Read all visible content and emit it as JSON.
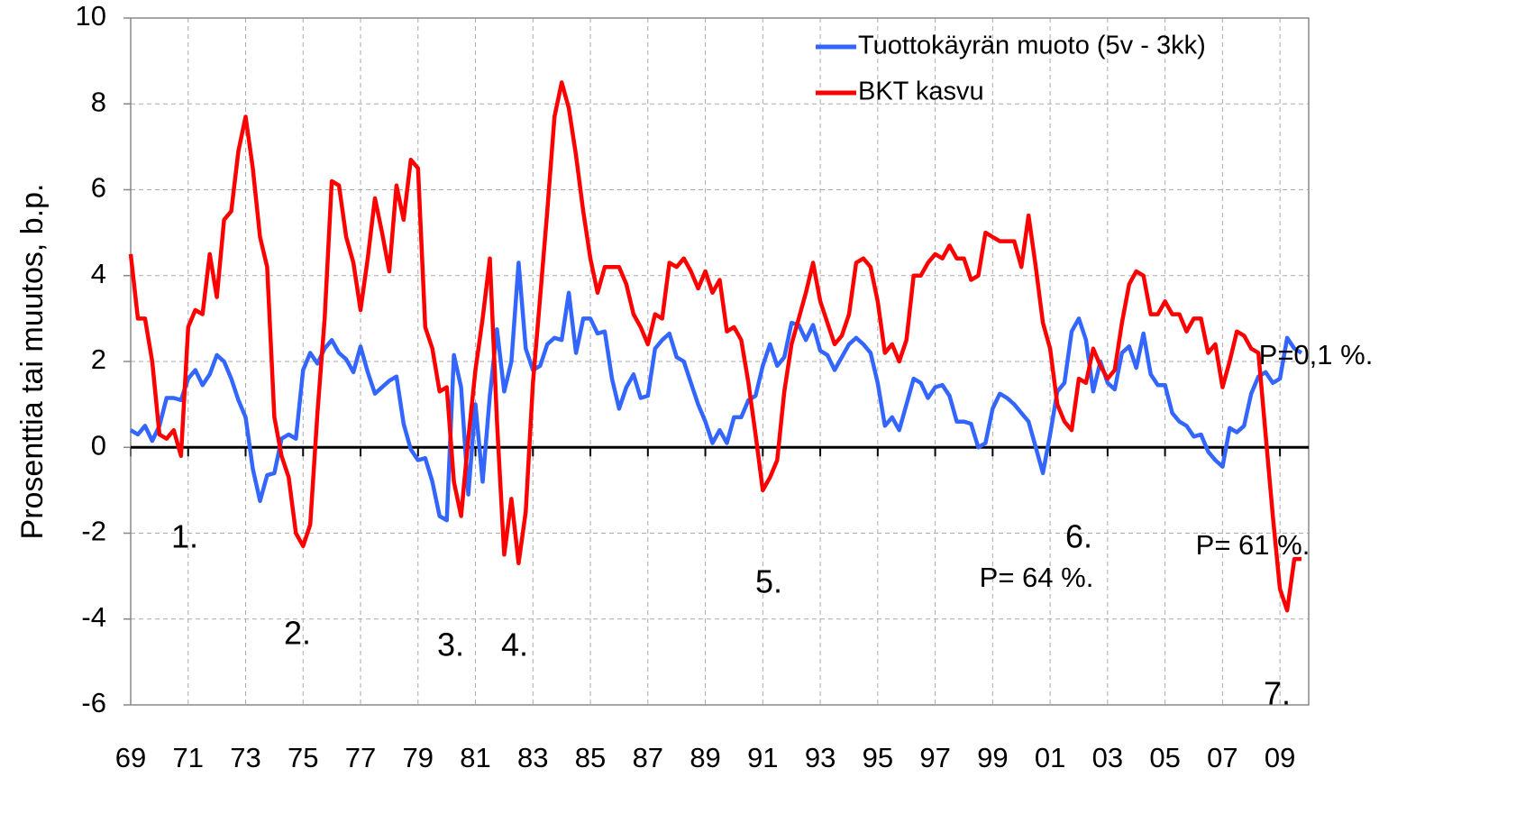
{
  "chart_data": {
    "type": "line",
    "y_label": "Prosenttia tai muutos, b.p.",
    "x": [
      1969,
      1969.25,
      1969.5,
      1969.75,
      1970,
      1970.25,
      1970.5,
      1970.75,
      1971,
      1971.25,
      1971.5,
      1971.75,
      1972,
      1972.25,
      1972.5,
      1972.75,
      1973,
      1973.25,
      1973.5,
      1973.75,
      1974,
      1974.25,
      1974.5,
      1974.75,
      1975,
      1975.25,
      1975.5,
      1975.75,
      1976,
      1976.25,
      1976.5,
      1976.75,
      1977,
      1977.25,
      1977.5,
      1977.75,
      1978,
      1978.25,
      1978.5,
      1978.75,
      1979,
      1979.25,
      1979.5,
      1979.75,
      1980,
      1980.25,
      1980.5,
      1980.75,
      1981,
      1981.25,
      1981.5,
      1981.75,
      1982,
      1982.25,
      1982.5,
      1982.75,
      1983,
      1983.25,
      1983.5,
      1983.75,
      1984,
      1984.25,
      1984.5,
      1984.75,
      1985,
      1985.25,
      1985.5,
      1985.75,
      1986,
      1986.25,
      1986.5,
      1986.75,
      1987,
      1987.25,
      1987.5,
      1987.75,
      1988,
      1988.25,
      1988.5,
      1988.75,
      1989,
      1989.25,
      1989.5,
      1989.75,
      1990,
      1990.25,
      1990.5,
      1990.75,
      1991,
      1991.25,
      1991.5,
      1991.75,
      1992,
      1992.25,
      1992.5,
      1992.75,
      1993,
      1993.25,
      1993.5,
      1993.75,
      1994,
      1994.25,
      1994.5,
      1994.75,
      1995,
      1995.25,
      1995.5,
      1995.75,
      1996,
      1996.25,
      1996.5,
      1996.75,
      1997,
      1997.25,
      1997.5,
      1997.75,
      1998,
      1998.25,
      1998.5,
      1998.75,
      1999,
      1999.25,
      1999.5,
      1999.75,
      2000,
      2000.25,
      2000.5,
      2000.75,
      2001,
      2001.25,
      2001.5,
      2001.75,
      2002,
      2002.25,
      2002.5,
      2002.75,
      2003,
      2003.25,
      2003.5,
      2003.75,
      2004,
      2004.25,
      2004.5,
      2004.75,
      2005,
      2005.25,
      2005.5,
      2005.75,
      2006,
      2006.25,
      2006.5,
      2006.75,
      2007,
      2007.25,
      2007.5,
      2007.75,
      2008,
      2008.25,
      2008.5,
      2008.75,
      2009,
      2009.25,
      2009.5,
      2009.75
    ],
    "series": [
      {
        "name": "Tuottokäyrän muoto (5v - 3kk)",
        "color": "#3366ff",
        "values": [
          0.4,
          0.3,
          0.5,
          0.15,
          0.5,
          1.15,
          1.15,
          1.1,
          1.6,
          1.8,
          1.45,
          1.7,
          2.15,
          2.0,
          1.6,
          1.1,
          0.7,
          -0.5,
          -1.25,
          -0.65,
          -0.6,
          0.2,
          0.3,
          0.2,
          1.8,
          2.2,
          1.95,
          2.3,
          2.5,
          2.2,
          2.05,
          1.75,
          2.35,
          1.75,
          1.25,
          1.4,
          1.55,
          1.65,
          0.55,
          -0.05,
          -0.3,
          -0.25,
          -0.8,
          -1.6,
          -1.7,
          2.15,
          1.4,
          -1.1,
          1.0,
          -0.8,
          1.2,
          2.75,
          1.3,
          2.0,
          4.3,
          2.3,
          1.8,
          1.9,
          2.4,
          2.55,
          2.5,
          3.6,
          2.2,
          3.0,
          3.0,
          2.65,
          2.7,
          1.6,
          0.9,
          1.4,
          1.7,
          1.15,
          1.2,
          2.3,
          2.5,
          2.65,
          2.1,
          2.0,
          1.5,
          1.0,
          0.6,
          0.1,
          0.4,
          0.1,
          0.7,
          0.7,
          1.1,
          1.2,
          1.9,
          2.4,
          1.9,
          2.1,
          2.9,
          2.85,
          2.5,
          2.85,
          2.25,
          2.15,
          1.8,
          2.1,
          2.4,
          2.55,
          2.4,
          2.2,
          1.5,
          0.5,
          0.7,
          0.4,
          1.0,
          1.6,
          1.5,
          1.15,
          1.4,
          1.45,
          1.2,
          0.6,
          0.6,
          0.55,
          0.0,
          0.1,
          0.9,
          1.25,
          1.15,
          1.0,
          0.8,
          0.6,
          0.0,
          -0.6,
          0.3,
          1.3,
          1.5,
          2.7,
          3.0,
          2.5,
          1.3,
          2.0,
          1.5,
          1.35,
          2.2,
          2.35,
          1.85,
          2.65,
          1.7,
          1.45,
          1.45,
          0.8,
          0.6,
          0.5,
          0.25,
          0.3,
          -0.1,
          -0.3,
          -0.45,
          0.45,
          0.35,
          0.5,
          1.25,
          1.65,
          1.75,
          1.5,
          1.6,
          2.55,
          2.3,
          2.2
        ]
      },
      {
        "name": "BKT kasvu",
        "color": "#ff0000",
        "values": [
          4.5,
          3.0,
          3.0,
          2.0,
          0.3,
          0.2,
          0.4,
          -0.2,
          2.8,
          3.2,
          3.1,
          4.5,
          3.5,
          5.3,
          5.5,
          6.9,
          7.7,
          6.5,
          4.9,
          4.2,
          0.7,
          -0.2,
          -0.7,
          -2.0,
          -2.3,
          -1.8,
          0.8,
          3.0,
          6.2,
          6.1,
          4.9,
          4.3,
          3.2,
          4.4,
          5.8,
          5.0,
          4.1,
          6.1,
          5.3,
          6.7,
          6.5,
          2.8,
          2.3,
          1.3,
          1.4,
          -0.8,
          -1.6,
          0.2,
          1.8,
          3.0,
          4.4,
          0.6,
          -2.5,
          -1.2,
          -2.7,
          -1.5,
          1.5,
          3.5,
          5.5,
          7.7,
          8.5,
          7.9,
          6.8,
          5.5,
          4.4,
          3.6,
          4.2,
          4.2,
          4.2,
          3.8,
          3.1,
          2.8,
          2.4,
          3.1,
          3.0,
          4.3,
          4.2,
          4.4,
          4.1,
          3.7,
          4.1,
          3.6,
          3.9,
          2.7,
          2.8,
          2.5,
          1.5,
          0.3,
          -1.0,
          -0.7,
          -0.3,
          1.3,
          2.4,
          3.0,
          3.6,
          4.3,
          3.4,
          2.9,
          2.4,
          2.6,
          3.1,
          4.3,
          4.4,
          4.2,
          3.4,
          2.2,
          2.4,
          2.0,
          2.5,
          4.0,
          4.0,
          4.3,
          4.5,
          4.4,
          4.7,
          4.4,
          4.4,
          3.9,
          4.0,
          5.0,
          4.9,
          4.8,
          4.8,
          4.8,
          4.2,
          5.4,
          4.2,
          2.9,
          2.3,
          1.0,
          0.6,
          0.4,
          1.6,
          1.5,
          2.3,
          1.9,
          1.6,
          1.8,
          2.9,
          3.8,
          4.1,
          4.0,
          3.1,
          3.1,
          3.4,
          3.1,
          3.1,
          2.7,
          3.0,
          3.0,
          2.2,
          2.4,
          1.4,
          2.0,
          2.7,
          2.6,
          2.3,
          2.2,
          0.3,
          -1.6,
          -3.3,
          -3.8,
          -2.6,
          -2.6
        ]
      }
    ],
    "xlim": [
      1969,
      2010
    ],
    "xticks": [
      {
        "value": 1969,
        "label": "69"
      },
      {
        "value": 1971,
        "label": "71"
      },
      {
        "value": 1973,
        "label": "73"
      },
      {
        "value": 1975,
        "label": "75"
      },
      {
        "value": 1977,
        "label": "77"
      },
      {
        "value": 1979,
        "label": "79"
      },
      {
        "value": 1981,
        "label": "81"
      },
      {
        "value": 1983,
        "label": "83"
      },
      {
        "value": 1985,
        "label": "85"
      },
      {
        "value": 1987,
        "label": "87"
      },
      {
        "value": 1989,
        "label": "89"
      },
      {
        "value": 1991,
        "label": "91"
      },
      {
        "value": 1993,
        "label": "93"
      },
      {
        "value": 1995,
        "label": "95"
      },
      {
        "value": 1997,
        "label": "97"
      },
      {
        "value": 1999,
        "label": "99"
      },
      {
        "value": 2001,
        "label": "01"
      },
      {
        "value": 2003,
        "label": "03"
      },
      {
        "value": 2005,
        "label": "05"
      },
      {
        "value": 2007,
        "label": "07"
      },
      {
        "value": 2009,
        "label": "09"
      }
    ],
    "ylim": [
      -6,
      10
    ],
    "yticks": [
      -6,
      -4,
      -2,
      0,
      2,
      4,
      6,
      8,
      10
    ],
    "grid": true,
    "legend": "top-right",
    "annotations": [
      "1.",
      "2.",
      "3.",
      "4.",
      "5.",
      "6.",
      "7.",
      "P=0,1 %.",
      "P= 64 %.",
      "P= 61 %."
    ]
  }
}
